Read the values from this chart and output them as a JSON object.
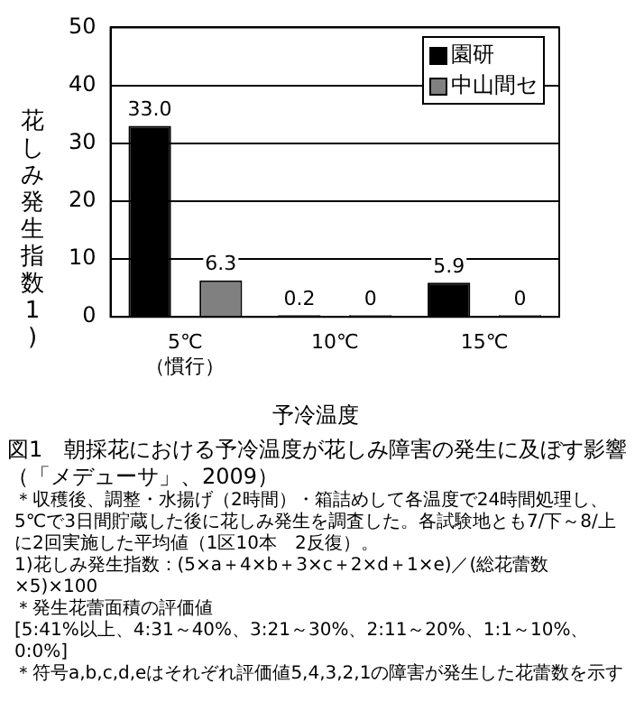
{
  "chart_data": {
    "type": "bar",
    "title": "図1　朝採花における予冷温度が花しみ障害の発生に及ぼす影響（「メデューサ」、2009）",
    "xlabel": "予冷温度",
    "ylabel": "花しみ発生指数1)",
    "categories": [
      "5℃ （慣行）",
      "10℃",
      "15℃"
    ],
    "series": [
      {
        "name": "園研",
        "color": "#000000",
        "values": [
          33.0,
          0.2,
          5.9
        ],
        "value_labels": [
          "33.0",
          "0.2",
          "5.9"
        ]
      },
      {
        "name": "中山間セ",
        "color": "#808080",
        "values": [
          6.3,
          0,
          0
        ],
        "value_labels": [
          "6.3",
          "0",
          "0"
        ]
      }
    ],
    "ylim": [
      0,
      50
    ],
    "yticks": [
      0,
      10,
      20,
      30,
      40,
      50
    ],
    "grid": "y",
    "legend": "top right",
    "annotations": [
      "＊収穫後、調整・水揚げ（2時間）・箱詰めして各温度で24時間処理し、5℃で3日間貯蔵した後に花しみ発生を調査した。各試験地とも7/下～8/上に2回実施した平均値（1区10本　2反復）。",
      "1)花しみ発生指数：(5×a＋4×b＋3×c＋2×d＋1×e)／(総花蕾数×5)×100",
      "＊発生花蕾面積の評価値",
      "[5:41%以上、4:31～40%、3:21～30%、2:11～20%、1:1～10%、0:0%]",
      "＊符号a,b,c,d,eはそれぞれ評価値5,4,3,2,1の障害が発生した花蕾数を示す"
    ]
  }
}
